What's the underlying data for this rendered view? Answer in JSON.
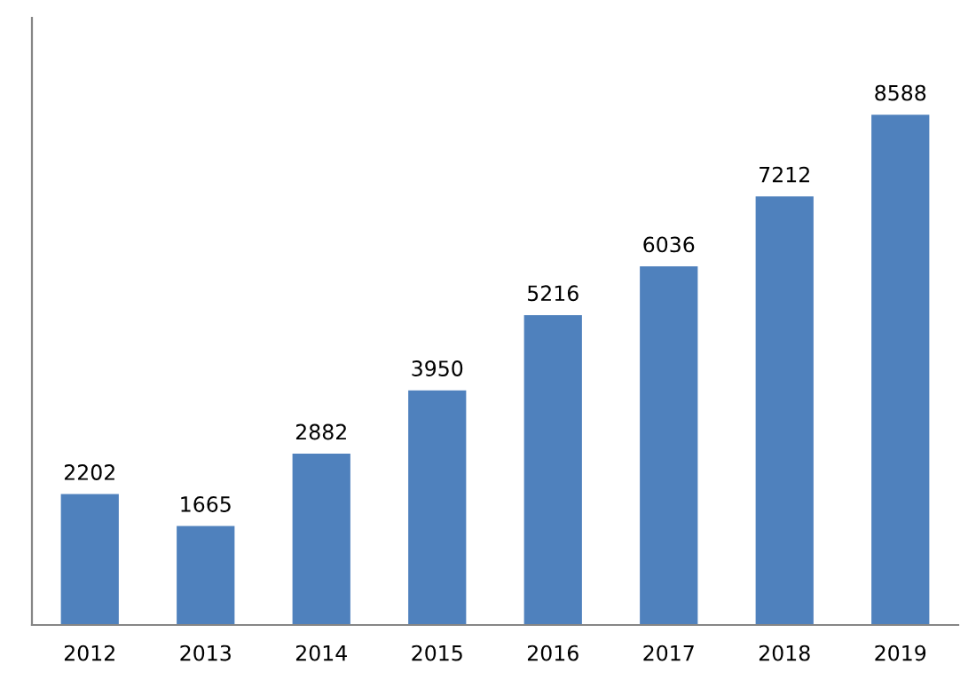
{
  "chart_data": {
    "type": "bar",
    "categories": [
      "2012",
      "2013",
      "2014",
      "2015",
      "2016",
      "2017",
      "2018",
      "2019"
    ],
    "values": [
      2202,
      1665,
      2882,
      3950,
      5216,
      6036,
      7212,
      8588
    ],
    "color": "#4f81bd",
    "data_labels": true,
    "grid": false,
    "legend": false
  }
}
